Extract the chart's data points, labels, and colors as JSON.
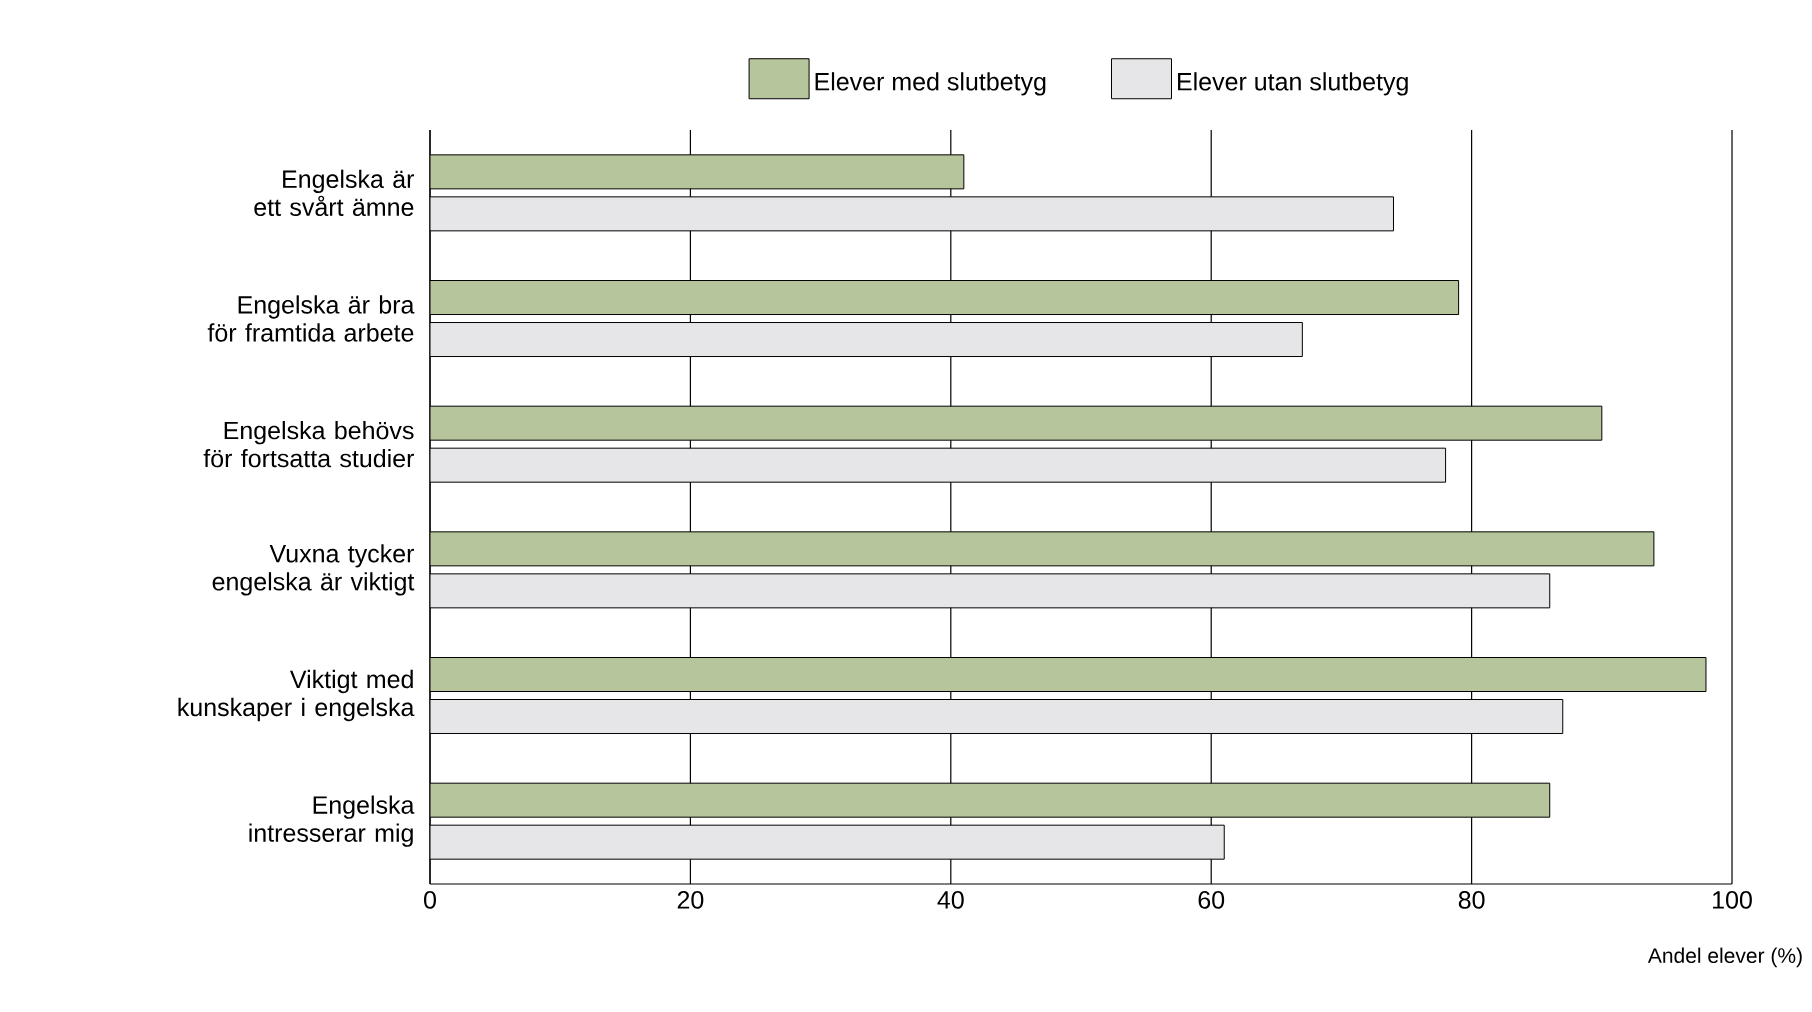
{
  "chart_data": {
    "type": "bar",
    "orientation": "horizontal",
    "categories": [
      "Engelska är ett svårt ämne",
      "Engelska är bra för framtida arbete",
      "Engelska behövs för fortsatta studier",
      "Vuxna tycker engelska är viktigt",
      "Viktigt med kunskaper i engelska",
      "Engelska intresserar mig"
    ],
    "series": [
      {
        "name": "Elever med slutbetyg",
        "color": "#b7c59c",
        "values": [
          41,
          79,
          90,
          94,
          98,
          86
        ]
      },
      {
        "name": "Elever utan slutbetyg",
        "color": "#e6e6e8",
        "values": [
          74,
          67,
          78,
          86,
          87,
          61
        ]
      }
    ],
    "xlabel": "Andel elever (%)",
    "xlim": [
      0,
      100
    ],
    "xticks": [
      0,
      20,
      40,
      60,
      80,
      100
    ],
    "grid": "x",
    "legend": "top"
  }
}
